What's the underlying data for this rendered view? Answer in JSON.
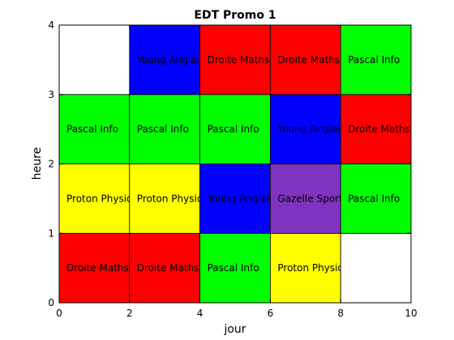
{
  "chart_data": {
    "type": "heatmap",
    "title": "EDT Promo 1",
    "xlabel": "jour",
    "ylabel": "heure",
    "xlim": [
      0,
      10
    ],
    "ylim": [
      0,
      4
    ],
    "xticks": [
      "0",
      "2",
      "4",
      "6",
      "8",
      "10"
    ],
    "yticks": [
      "0",
      "1",
      "2",
      "3",
      "4"
    ],
    "grid": false,
    "colors": {
      "Droite Maths": "#ff0000",
      "Pascal Info": "#00ff00",
      "Young Anglais": "#0000ff",
      "Proton Physique": "#ffff00",
      "Gazelle Sport": "#7f33bf",
      "empty": "#ffffff"
    },
    "cells": [
      {
        "x0": 0,
        "x1": 2,
        "y0": 0,
        "y1": 1,
        "label": "Droite Maths"
      },
      {
        "x0": 2,
        "x1": 4,
        "y0": 0,
        "y1": 1,
        "label": "Droite Maths"
      },
      {
        "x0": 4,
        "x1": 6,
        "y0": 0,
        "y1": 1,
        "label": "Pascal Info"
      },
      {
        "x0": 6,
        "x1": 8,
        "y0": 0,
        "y1": 1,
        "label": "Proton Physique"
      },
      {
        "x0": 8,
        "x1": 10,
        "y0": 0,
        "y1": 1,
        "label": ""
      },
      {
        "x0": 0,
        "x1": 2,
        "y0": 1,
        "y1": 2,
        "label": "Proton Physique"
      },
      {
        "x0": 2,
        "x1": 4,
        "y0": 1,
        "y1": 2,
        "label": "Proton Physique"
      },
      {
        "x0": 4,
        "x1": 6,
        "y0": 1,
        "y1": 2,
        "label": "Young Anglais"
      },
      {
        "x0": 6,
        "x1": 8,
        "y0": 1,
        "y1": 2,
        "label": "Gazelle Sport"
      },
      {
        "x0": 8,
        "x1": 10,
        "y0": 1,
        "y1": 2,
        "label": "Pascal Info"
      },
      {
        "x0": 0,
        "x1": 2,
        "y0": 2,
        "y1": 3,
        "label": "Pascal Info"
      },
      {
        "x0": 2,
        "x1": 4,
        "y0": 2,
        "y1": 3,
        "label": "Pascal Info"
      },
      {
        "x0": 4,
        "x1": 6,
        "y0": 2,
        "y1": 3,
        "label": "Pascal Info"
      },
      {
        "x0": 6,
        "x1": 8,
        "y0": 2,
        "y1": 3,
        "label": "Young Anglais"
      },
      {
        "x0": 8,
        "x1": 10,
        "y0": 2,
        "y1": 3,
        "label": "Droite Maths"
      },
      {
        "x0": 0,
        "x1": 2,
        "y0": 3,
        "y1": 4,
        "label": ""
      },
      {
        "x0": 2,
        "x1": 4,
        "y0": 3,
        "y1": 4,
        "label": "Young Anglais"
      },
      {
        "x0": 4,
        "x1": 6,
        "y0": 3,
        "y1": 4,
        "label": "Droite Maths"
      },
      {
        "x0": 6,
        "x1": 8,
        "y0": 3,
        "y1": 4,
        "label": "Droite Maths"
      },
      {
        "x0": 8,
        "x1": 10,
        "y0": 3,
        "y1": 4,
        "label": "Pascal Info"
      }
    ]
  }
}
